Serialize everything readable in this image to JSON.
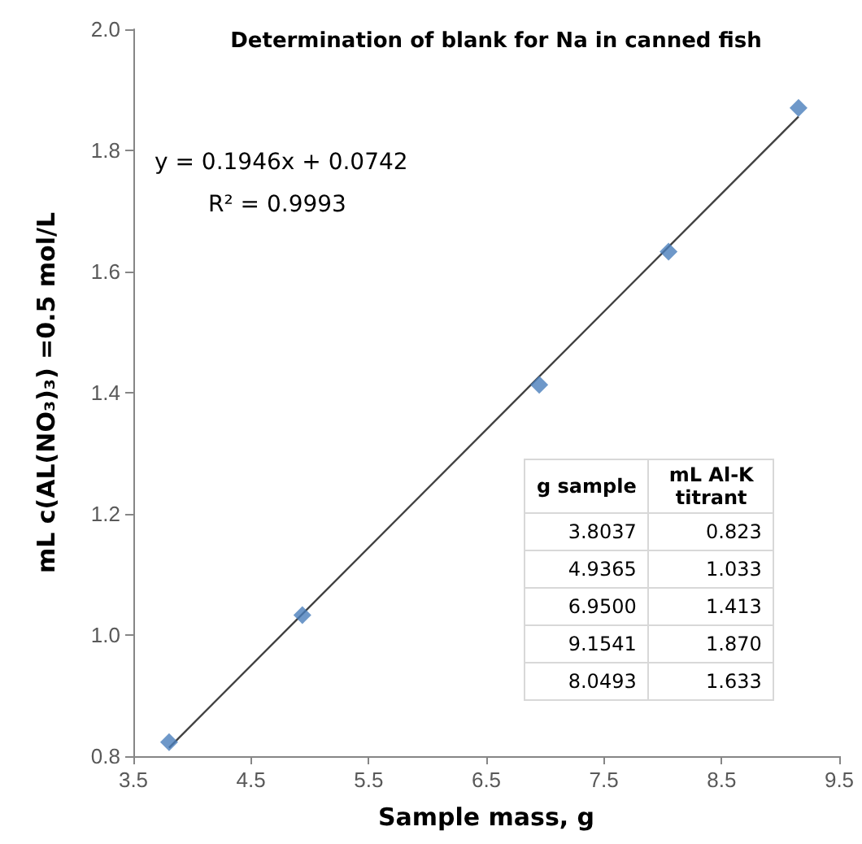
{
  "chart_data": {
    "type": "scatter",
    "title": "Determination of blank for Na in canned fish",
    "xlabel": "Sample mass, g",
    "ylabel": "mL c(AL(NO₃)₃) =0.5 mol/L",
    "annotations": [
      "y = 0.1946x + 0.0742",
      "R² = 0.9993",
      "g sample",
      "mL Al-K titrant",
      "3.8037",
      "0.823",
      "4.9365",
      "1.033",
      "6.9500",
      "1.413",
      "9.1541",
      "1.870",
      "8.0493",
      "1.633"
    ],
    "x": [
      3.8037,
      4.9365,
      6.95,
      9.1541,
      8.0493
    ],
    "series": [
      {
        "color": "#4a7ebb",
        "values": [
          0.823,
          1.033,
          1.413,
          1.87,
          1.633
        ]
      },
      {
        "type": "line",
        "color": "#404040",
        "x": [
          3.8037,
          9.1541
        ],
        "values": [
          0.814,
          1.856
        ],
        "marker": "none"
      }
    ],
    "marker": "diamond",
    "line_style": "solid",
    "grid": false,
    "xlim": [
      3.5,
      9.5
    ],
    "xticks": [
      3.5,
      4.5,
      5.5,
      6.5,
      7.5,
      8.5,
      9.5
    ],
    "ylim": [
      0.8,
      2.0
    ],
    "yticks": [
      0.8,
      {
        "value": 1.0,
        "label": "1.0"
      },
      1.2,
      1.4,
      1.6,
      1.8,
      {
        "value": 2.0,
        "label": "2.0"
      }
    ]
  }
}
